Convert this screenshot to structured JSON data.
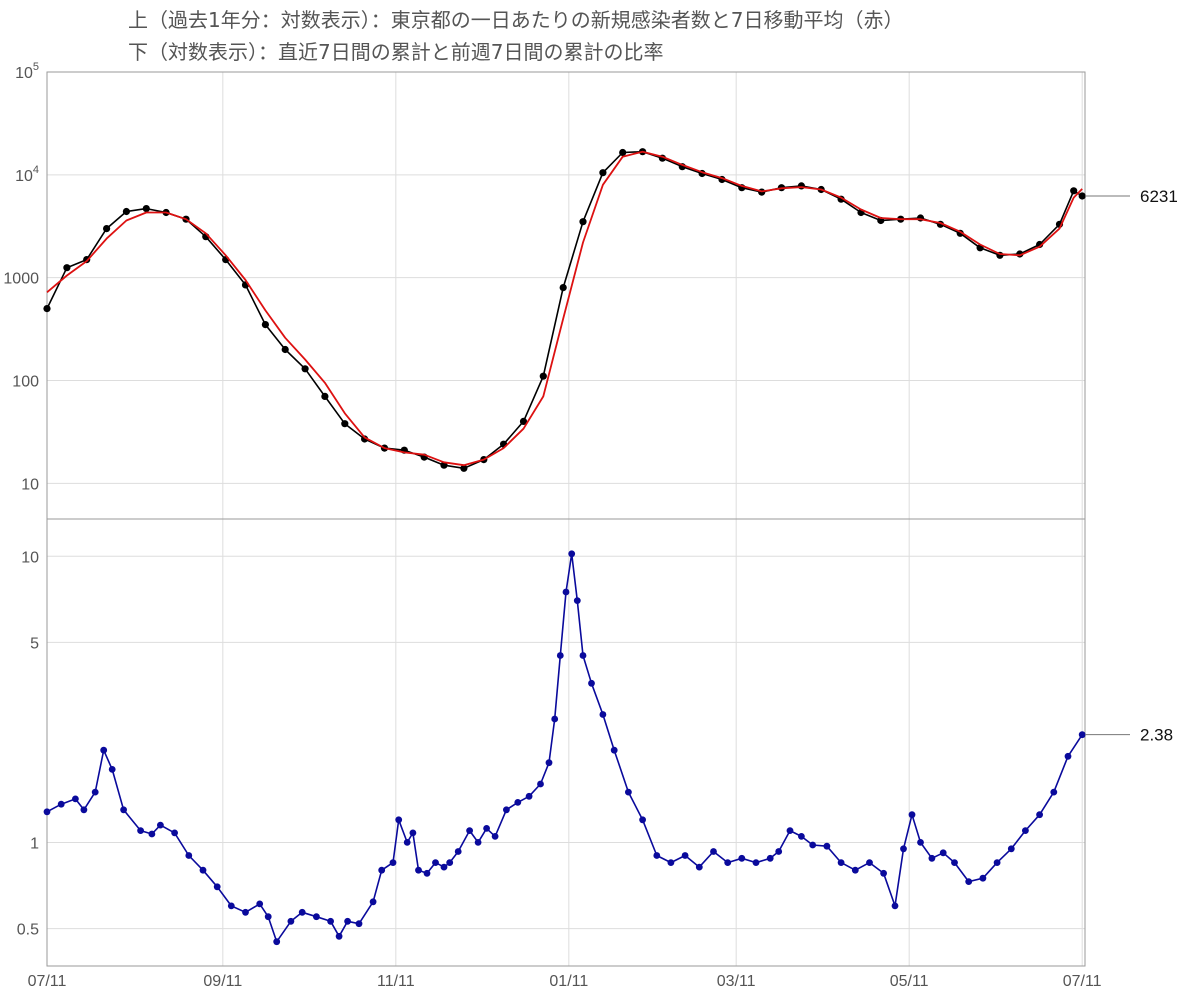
{
  "titles": {
    "line1": "上（過去1年分：対数表示）：東京都の一日あたりの新規感染者数と7日移動平均（赤）",
    "line2": "下（対数表示）：直近7日間の累計と前週7日間の累計の比率"
  },
  "chart_data": [
    {
      "type": "line",
      "panel": "top",
      "y_scale": "log",
      "ylim": [
        4.5,
        100000
      ],
      "y_ticks": [
        {
          "value": 10,
          "label": "10"
        },
        {
          "value": 100,
          "label": "100"
        },
        {
          "value": 1000,
          "label": "1000"
        },
        {
          "value": 10000,
          "label": "10",
          "exponent": "4"
        },
        {
          "value": 100000,
          "label": "10",
          "exponent": "5"
        }
      ],
      "x_range_days": [
        0,
        366
      ],
      "x_ticks": [
        {
          "day": 0,
          "label": "07/11"
        },
        {
          "day": 62,
          "label": "09/11"
        },
        {
          "day": 123,
          "label": "11/11"
        },
        {
          "day": 184,
          "label": "01/11"
        },
        {
          "day": 243,
          "label": "03/11"
        },
        {
          "day": 304,
          "label": "05/11"
        },
        {
          "day": 365,
          "label": "07/11"
        }
      ],
      "callout": {
        "value": 6231,
        "label": "6231"
      },
      "series": [
        {
          "role": "daily",
          "color": "#000000",
          "points": [
            [
              0,
              500
            ],
            [
              7,
              1250
            ],
            [
              14,
              1500
            ],
            [
              21,
              3000
            ],
            [
              28,
              4400
            ],
            [
              35,
              4700
            ],
            [
              42,
              4300
            ],
            [
              49,
              3700
            ],
            [
              56,
              2500
            ],
            [
              63,
              1500
            ],
            [
              70,
              850
            ],
            [
              77,
              350
            ],
            [
              84,
              200
            ],
            [
              91,
              130
            ],
            [
              98,
              70
            ],
            [
              105,
              38
            ],
            [
              112,
              27
            ],
            [
              119,
              22
            ],
            [
              126,
              21
            ],
            [
              133,
              18
            ],
            [
              140,
              15
            ],
            [
              147,
              14
            ],
            [
              154,
              17
            ],
            [
              161,
              24
            ],
            [
              168,
              40
            ],
            [
              175,
              110
            ],
            [
              182,
              800
            ],
            [
              189,
              3500
            ],
            [
              196,
              10500
            ],
            [
              203,
              16500
            ],
            [
              210,
              16800
            ],
            [
              217,
              14500
            ],
            [
              224,
              12000
            ],
            [
              231,
              10300
            ],
            [
              238,
              9000
            ],
            [
              245,
              7500
            ],
            [
              252,
              6800
            ],
            [
              259,
              7500
            ],
            [
              266,
              7800
            ],
            [
              273,
              7200
            ],
            [
              280,
              5800
            ],
            [
              287,
              4300
            ],
            [
              294,
              3600
            ],
            [
              301,
              3700
            ],
            [
              308,
              3800
            ],
            [
              315,
              3300
            ],
            [
              322,
              2700
            ],
            [
              329,
              1950
            ],
            [
              336,
              1650
            ],
            [
              343,
              1700
            ],
            [
              350,
              2100
            ],
            [
              357,
              3300
            ],
            [
              362,
              7000
            ],
            [
              365,
              6231
            ]
          ]
        },
        {
          "role": "moving-average",
          "color": "#dd1111",
          "points": [
            [
              0,
              720
            ],
            [
              7,
              1050
            ],
            [
              14,
              1450
            ],
            [
              21,
              2400
            ],
            [
              28,
              3600
            ],
            [
              35,
              4300
            ],
            [
              42,
              4300
            ],
            [
              49,
              3700
            ],
            [
              56,
              2700
            ],
            [
              63,
              1650
            ],
            [
              70,
              950
            ],
            [
              77,
              480
            ],
            [
              84,
              260
            ],
            [
              91,
              160
            ],
            [
              98,
              95
            ],
            [
              105,
              48
            ],
            [
              112,
              28
            ],
            [
              119,
              22
            ],
            [
              126,
              20
            ],
            [
              133,
              19
            ],
            [
              140,
              16
            ],
            [
              147,
              15
            ],
            [
              154,
              17
            ],
            [
              161,
              22
            ],
            [
              168,
              34
            ],
            [
              175,
              70
            ],
            [
              182,
              400
            ],
            [
              189,
              2200
            ],
            [
              196,
              8000
            ],
            [
              203,
              15000
            ],
            [
              210,
              16800
            ],
            [
              217,
              15000
            ],
            [
              224,
              12500
            ],
            [
              231,
              10600
            ],
            [
              238,
              9300
            ],
            [
              245,
              7800
            ],
            [
              252,
              6900
            ],
            [
              259,
              7400
            ],
            [
              266,
              7600
            ],
            [
              273,
              7200
            ],
            [
              280,
              6000
            ],
            [
              287,
              4600
            ],
            [
              294,
              3800
            ],
            [
              301,
              3700
            ],
            [
              308,
              3700
            ],
            [
              315,
              3400
            ],
            [
              322,
              2800
            ],
            [
              329,
              2100
            ],
            [
              336,
              1700
            ],
            [
              343,
              1650
            ],
            [
              350,
              2000
            ],
            [
              357,
              3000
            ],
            [
              362,
              6000
            ],
            [
              365,
              7300
            ]
          ]
        }
      ]
    },
    {
      "type": "line",
      "panel": "bottom",
      "y_scale": "log",
      "ylim": [
        0.37,
        13.5
      ],
      "y_ticks": [
        {
          "value": 0.5,
          "label": "0.5"
        },
        {
          "value": 1,
          "label": "1"
        },
        {
          "value": 5,
          "label": "5"
        },
        {
          "value": 10,
          "label": "10"
        }
      ],
      "callout": {
        "value": 2.38,
        "label": "2.38"
      },
      "series": [
        {
          "role": "week-over-week-ratio",
          "color": "#0a0a9c",
          "points": [
            [
              0,
              1.28
            ],
            [
              5,
              1.36
            ],
            [
              10,
              1.42
            ],
            [
              13,
              1.3
            ],
            [
              17,
              1.5
            ],
            [
              20,
              2.1
            ],
            [
              23,
              1.8
            ],
            [
              27,
              1.3
            ],
            [
              33,
              1.1
            ],
            [
              37,
              1.07
            ],
            [
              40,
              1.15
            ],
            [
              45,
              1.08
            ],
            [
              50,
              0.9
            ],
            [
              55,
              0.8
            ],
            [
              60,
              0.7
            ],
            [
              65,
              0.6
            ],
            [
              70,
              0.57
            ],
            [
              75,
              0.61
            ],
            [
              78,
              0.55
            ],
            [
              81,
              0.45
            ],
            [
              86,
              0.53
            ],
            [
              90,
              0.57
            ],
            [
              95,
              0.55
            ],
            [
              100,
              0.53
            ],
            [
              103,
              0.47
            ],
            [
              106,
              0.53
            ],
            [
              110,
              0.52
            ],
            [
              115,
              0.62
            ],
            [
              118,
              0.8
            ],
            [
              122,
              0.85
            ],
            [
              124,
              1.2
            ],
            [
              127,
              1.0
            ],
            [
              129,
              1.08
            ],
            [
              131,
              0.8
            ],
            [
              134,
              0.78
            ],
            [
              137,
              0.85
            ],
            [
              140,
              0.82
            ],
            [
              142,
              0.85
            ],
            [
              145,
              0.93
            ],
            [
              149,
              1.1
            ],
            [
              152,
              1.0
            ],
            [
              155,
              1.12
            ],
            [
              158,
              1.05
            ],
            [
              162,
              1.3
            ],
            [
              166,
              1.38
            ],
            [
              170,
              1.45
            ],
            [
              174,
              1.6
            ],
            [
              177,
              1.9
            ],
            [
              179,
              2.7
            ],
            [
              181,
              4.5
            ],
            [
              183,
              7.5
            ],
            [
              185,
              10.2
            ],
            [
              187,
              7.0
            ],
            [
              189,
              4.5
            ],
            [
              192,
              3.6
            ],
            [
              196,
              2.8
            ],
            [
              200,
              2.1
            ],
            [
              205,
              1.5
            ],
            [
              210,
              1.2
            ],
            [
              215,
              0.9
            ],
            [
              220,
              0.85
            ],
            [
              225,
              0.9
            ],
            [
              230,
              0.82
            ],
            [
              235,
              0.93
            ],
            [
              240,
              0.85
            ],
            [
              245,
              0.88
            ],
            [
              250,
              0.85
            ],
            [
              255,
              0.88
            ],
            [
              258,
              0.93
            ],
            [
              262,
              1.1
            ],
            [
              266,
              1.05
            ],
            [
              270,
              0.98
            ],
            [
              275,
              0.97
            ],
            [
              280,
              0.85
            ],
            [
              285,
              0.8
            ],
            [
              290,
              0.85
            ],
            [
              295,
              0.78
            ],
            [
              299,
              0.6
            ],
            [
              302,
              0.95
            ],
            [
              305,
              1.25
            ],
            [
              308,
              1.0
            ],
            [
              312,
              0.88
            ],
            [
              316,
              0.92
            ],
            [
              320,
              0.85
            ],
            [
              325,
              0.73
            ],
            [
              330,
              0.75
            ],
            [
              335,
              0.85
            ],
            [
              340,
              0.95
            ],
            [
              345,
              1.1
            ],
            [
              350,
              1.25
            ],
            [
              355,
              1.5
            ],
            [
              360,
              2.0
            ],
            [
              365,
              2.38
            ]
          ]
        }
      ]
    }
  ]
}
